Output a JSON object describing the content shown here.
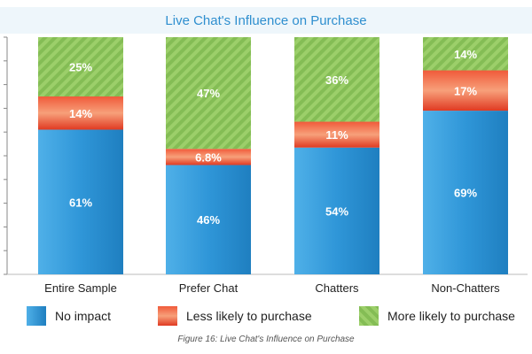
{
  "chart_data": {
    "type": "bar",
    "stacked": true,
    "title": "Live Chat's Influence on Purchase",
    "categories": [
      "Entire Sample",
      "Prefer Chat",
      "Chatters",
      "Non-Chatters"
    ],
    "series": [
      {
        "name": "No impact",
        "values": [
          61,
          46,
          54,
          69
        ],
        "labels": [
          "61%",
          "46%",
          "54%",
          "69%"
        ],
        "color": "#2f96d8"
      },
      {
        "name": "Less likely to purchase",
        "values": [
          14,
          6.8,
          11,
          17
        ],
        "labels": [
          "14%",
          "6.8%",
          "11%",
          "17%"
        ],
        "color": "#e8472c"
      },
      {
        "name": "More likely to purchase",
        "values": [
          25,
          47,
          36,
          14
        ],
        "labels": [
          "25%",
          "47%",
          "36%",
          "14%"
        ],
        "color": "#8cc65a"
      }
    ],
    "ylim": [
      0,
      100
    ],
    "grid": false,
    "legend_position": "bottom",
    "caption": "Figure 16: Live Chat's Influence on Purchase"
  }
}
